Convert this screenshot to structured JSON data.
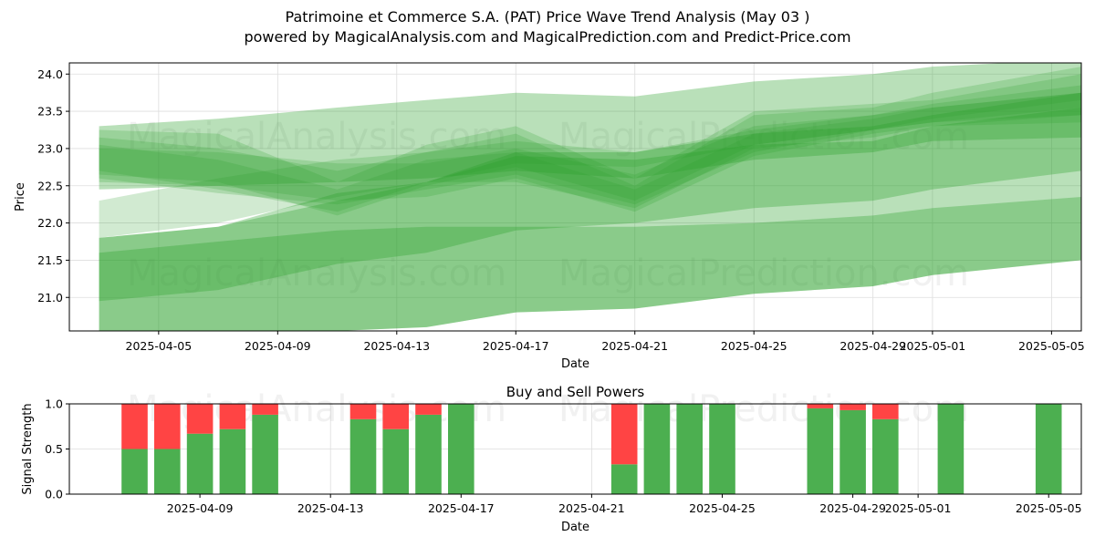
{
  "header": {
    "title": "Patrimoine et Commerce S.A. (PAT) Price Wave Trend Analysis (May 03 )",
    "subtitle": "powered by MagicalAnalysis.com and MagicalPrediction.com and Predict-Price.com"
  },
  "watermarks": [
    "MagicalAnalysis.com",
    "MagicalPrediction.com"
  ],
  "colors": {
    "band": "#2ca02c",
    "buy": "#4caf50",
    "sell": "#ff4444"
  },
  "chart_data": [
    {
      "type": "area",
      "title": "",
      "xlabel": "Date",
      "ylabel": "Price",
      "ylim": [
        20.55,
        24.15
      ],
      "xlim": [
        "2025-04-02",
        "2025-05-06"
      ],
      "grid": true,
      "x_ticks": [
        "2025-04-05",
        "2025-04-09",
        "2025-04-13",
        "2025-04-17",
        "2025-04-21",
        "2025-04-25",
        "2025-04-29",
        "2025-05-01",
        "2025-05-05"
      ],
      "y_ticks": [
        "21.0",
        "21.5",
        "22.0",
        "22.5",
        "23.0",
        "23.5",
        "24.0"
      ],
      "x": [
        "2025-04-03",
        "2025-04-07",
        "2025-04-11",
        "2025-04-14",
        "2025-04-17",
        "2025-04-21",
        "2025-04-25",
        "2025-04-29",
        "2025-05-01",
        "2025-05-06"
      ],
      "series": [
        {
          "lower": [
            22.45,
            22.5,
            22.55,
            22.6,
            22.7,
            22.6,
            22.85,
            22.95,
            23.1,
            23.15
          ],
          "upper": [
            23.3,
            23.4,
            23.55,
            23.65,
            23.75,
            23.7,
            23.9,
            24.0,
            24.1,
            24.2
          ]
        },
        {
          "lower": [
            22.55,
            22.5,
            22.3,
            22.35,
            22.6,
            22.15,
            22.9,
            23.2,
            23.3,
            23.45
          ],
          "upper": [
            23.0,
            22.95,
            22.8,
            22.8,
            23.0,
            22.65,
            23.3,
            23.45,
            23.6,
            23.85
          ]
        },
        {
          "lower": [
            22.65,
            22.55,
            22.1,
            22.5,
            22.75,
            22.3,
            23.05,
            23.25,
            23.4,
            23.65
          ],
          "upper": [
            23.15,
            23.0,
            22.7,
            22.95,
            23.2,
            22.5,
            23.45,
            23.55,
            23.75,
            24.1
          ]
        },
        {
          "lower": [
            22.7,
            22.45,
            22.15,
            22.55,
            22.55,
            22.2,
            23.0,
            23.15,
            23.3,
            23.35
          ],
          "upper": [
            23.05,
            22.85,
            22.45,
            22.85,
            22.95,
            22.45,
            23.2,
            23.4,
            23.55,
            23.75
          ]
        },
        {
          "lower": [
            22.6,
            22.4,
            22.25,
            22.45,
            22.65,
            22.25,
            22.95,
            23.25,
            23.35,
            23.55
          ],
          "upper": [
            23.25,
            23.2,
            22.55,
            23.05,
            23.3,
            22.6,
            23.5,
            23.6,
            23.65,
            24.0
          ]
        },
        {
          "lower": [
            21.8,
            22.0,
            22.35,
            22.55,
            22.8,
            22.75,
            23.05,
            23.25,
            23.35,
            23.45
          ],
          "upper": [
            22.3,
            22.6,
            22.85,
            22.95,
            23.1,
            22.95,
            23.25,
            23.45,
            23.55,
            23.75
          ]
        },
        {
          "lower": [
            20.95,
            21.1,
            21.45,
            21.6,
            21.9,
            22.0,
            22.2,
            22.3,
            22.45,
            22.7
          ],
          "upper": [
            21.8,
            21.95,
            22.3,
            22.55,
            22.9,
            22.85,
            23.05,
            23.1,
            23.3,
            23.55
          ]
        },
        {
          "lower": [
            20.2,
            20.4,
            20.55,
            20.6,
            20.8,
            20.85,
            21.05,
            21.15,
            21.3,
            21.5
          ],
          "upper": [
            21.8,
            21.95,
            22.4,
            22.55,
            22.95,
            22.95,
            23.2,
            23.3,
            23.45,
            23.75
          ]
        },
        {
          "lower": [
            20.2,
            20.4,
            20.55,
            20.6,
            20.8,
            20.85,
            21.05,
            21.15,
            21.3,
            21.5
          ],
          "upper": [
            21.6,
            21.75,
            21.9,
            21.95,
            21.95,
            21.95,
            22.0,
            22.1,
            22.2,
            22.35
          ]
        }
      ]
    },
    {
      "type": "bar",
      "title": "Buy and Sell Powers",
      "xlabel": "Date",
      "ylabel": "Signal Strength",
      "ylim": [
        0,
        1
      ],
      "xlim": [
        "2025-04-05",
        "2025-05-06"
      ],
      "grid": true,
      "x_ticks": [
        "2025-04-09",
        "2025-04-13",
        "2025-04-17",
        "2025-04-21",
        "2025-04-25",
        "2025-04-29",
        "2025-05-01",
        "2025-05-05"
      ],
      "y_ticks": [
        "0.0",
        "0.5",
        "1.0"
      ],
      "categories": [
        "2025-04-07",
        "2025-04-08",
        "2025-04-09",
        "2025-04-10",
        "2025-04-11",
        "2025-04-14",
        "2025-04-15",
        "2025-04-16",
        "2025-04-17",
        "2025-04-22",
        "2025-04-23",
        "2025-04-24",
        "2025-04-25",
        "2025-04-28",
        "2025-04-29",
        "2025-04-30",
        "2025-05-02",
        "2025-05-05"
      ],
      "series": [
        {
          "name": "Buy",
          "values": [
            0.5,
            0.5,
            0.67,
            0.72,
            0.88,
            0.83,
            0.72,
            0.88,
            1.0,
            0.33,
            1.0,
            1.0,
            1.0,
            0.95,
            0.93,
            0.83,
            1.0,
            1.0
          ]
        },
        {
          "name": "Sell",
          "values": [
            0.5,
            0.5,
            0.33,
            0.28,
            0.12,
            0.17,
            0.28,
            0.12,
            0.0,
            0.67,
            0.0,
            0.0,
            0.0,
            0.05,
            0.07,
            0.17,
            0.0,
            0.0
          ]
        }
      ]
    }
  ]
}
